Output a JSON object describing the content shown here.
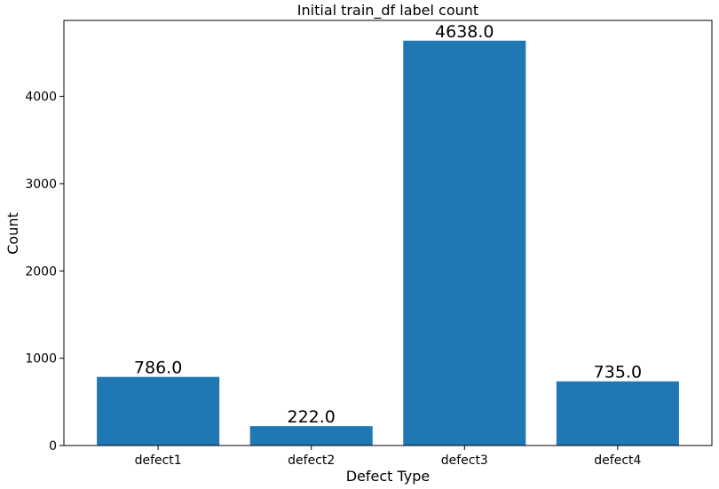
{
  "chart_data": {
    "type": "bar",
    "title": "Initial train_df label count",
    "xlabel": "Defect Type",
    "ylabel": "Count",
    "categories": [
      "defect1",
      "defect2",
      "defect3",
      "defect4"
    ],
    "values": [
      786.0,
      222.0,
      4638.0,
      735.0
    ],
    "data_labels": [
      "786.0",
      "222.0",
      "4638.0",
      "735.0"
    ],
    "yticks": [
      0,
      1000,
      2000,
      3000,
      4000
    ],
    "ylim": [
      0,
      4870
    ],
    "bar_color": "#1f77b4",
    "grid": false
  }
}
